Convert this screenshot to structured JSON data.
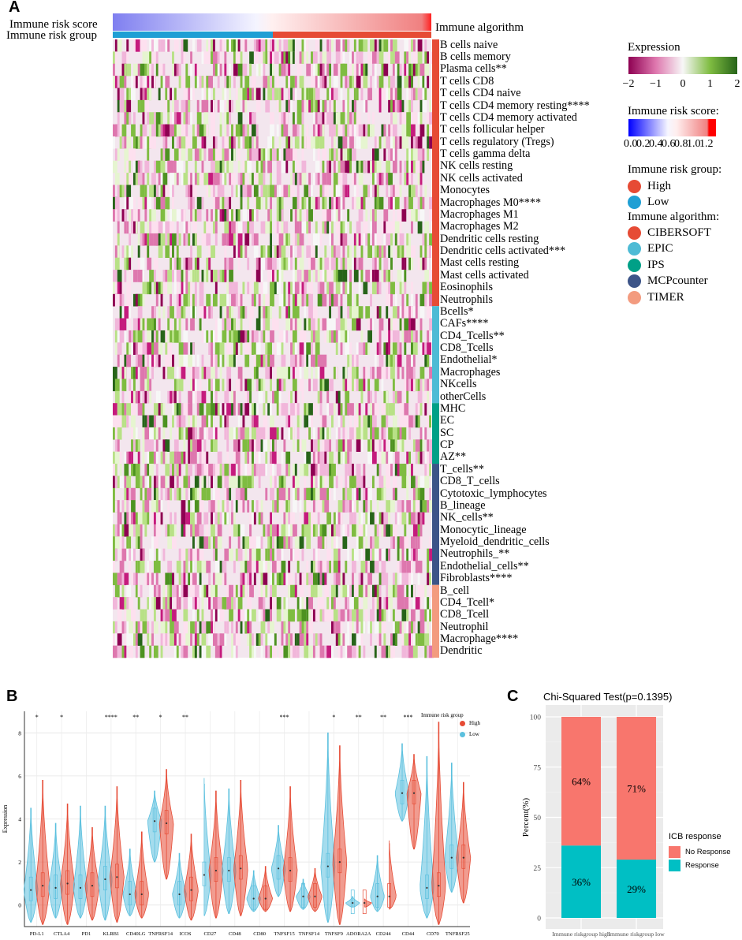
{
  "colors": {
    "high": "#e64b35",
    "low": "#1f9fd4",
    "CIBERSOFT": "#e64b35",
    "EPIC": "#4dbbd5",
    "IPS": "#00a087",
    "MCPcounter": "#3c5488",
    "TIMER": "#f39b7f",
    "no_response": "#f8766d",
    "response": "#00bfc4"
  },
  "panel_a": {
    "letter": "A",
    "score_label": "Immune risk score",
    "group_label": "Immune risk group",
    "algorithm_label": "Immune algorithm",
    "rows": [
      {
        "label": "B cells naive",
        "alg": "CIBERSOFT"
      },
      {
        "label": "B cells memory",
        "alg": "CIBERSOFT"
      },
      {
        "label": "Plasma cells**",
        "alg": "CIBERSOFT"
      },
      {
        "label": "T cells CD8",
        "alg": "CIBERSOFT"
      },
      {
        "label": "T cells CD4 naive",
        "alg": "CIBERSOFT"
      },
      {
        "label": "T cells CD4 memory resting****",
        "alg": "CIBERSOFT"
      },
      {
        "label": "T cells CD4 memory activated",
        "alg": "CIBERSOFT"
      },
      {
        "label": "T cells follicular helper",
        "alg": "CIBERSOFT"
      },
      {
        "label": "T cells regulatory (Tregs)",
        "alg": "CIBERSOFT"
      },
      {
        "label": "T cells gamma delta",
        "alg": "CIBERSOFT"
      },
      {
        "label": "NK cells resting",
        "alg": "CIBERSOFT"
      },
      {
        "label": "NK cells activated",
        "alg": "CIBERSOFT"
      },
      {
        "label": "Monocytes",
        "alg": "CIBERSOFT"
      },
      {
        "label": "Macrophages M0****",
        "alg": "CIBERSOFT"
      },
      {
        "label": "Macrophages M1",
        "alg": "CIBERSOFT"
      },
      {
        "label": "Macrophages M2",
        "alg": "CIBERSOFT"
      },
      {
        "label": "Dendritic cells resting",
        "alg": "CIBERSOFT"
      },
      {
        "label": "Dendritic cells activated***",
        "alg": "CIBERSOFT"
      },
      {
        "label": "Mast cells resting",
        "alg": "CIBERSOFT"
      },
      {
        "label": "Mast cells activated",
        "alg": "CIBERSOFT"
      },
      {
        "label": "Eosinophils",
        "alg": "CIBERSOFT"
      },
      {
        "label": "Neutrophils",
        "alg": "CIBERSOFT"
      },
      {
        "label": "Bcells*",
        "alg": "EPIC"
      },
      {
        "label": "CAFs****",
        "alg": "EPIC"
      },
      {
        "label": "CD4_Tcells**",
        "alg": "EPIC"
      },
      {
        "label": "CD8_Tcells",
        "alg": "EPIC"
      },
      {
        "label": "Endothelial*",
        "alg": "EPIC"
      },
      {
        "label": "Macrophages",
        "alg": "EPIC"
      },
      {
        "label": "NKcells",
        "alg": "EPIC"
      },
      {
        "label": "otherCells",
        "alg": "EPIC"
      },
      {
        "label": "MHC",
        "alg": "IPS"
      },
      {
        "label": "EC",
        "alg": "IPS"
      },
      {
        "label": "SC",
        "alg": "IPS"
      },
      {
        "label": "CP",
        "alg": "IPS"
      },
      {
        "label": "AZ**",
        "alg": "IPS"
      },
      {
        "label": "T_cells**",
        "alg": "MCPcounter"
      },
      {
        "label": "CD8_T_cells",
        "alg": "MCPcounter"
      },
      {
        "label": "Cytotoxic_lymphocytes",
        "alg": "MCPcounter"
      },
      {
        "label": "B_lineage",
        "alg": "MCPcounter"
      },
      {
        "label": "NK_cells**",
        "alg": "MCPcounter"
      },
      {
        "label": "Monocytic_lineage",
        "alg": "MCPcounter"
      },
      {
        "label": "Myeloid_dendritic_cells",
        "alg": "MCPcounter"
      },
      {
        "label": "Neutrophils_**",
        "alg": "MCPcounter"
      },
      {
        "label": "Endothelial_cells**",
        "alg": "MCPcounter"
      },
      {
        "label": "Fibroblasts****",
        "alg": "MCPcounter"
      },
      {
        "label": "B_cell",
        "alg": "TIMER"
      },
      {
        "label": "CD4_Tcell*",
        "alg": "TIMER"
      },
      {
        "label": "CD8_Tcell",
        "alg": "TIMER"
      },
      {
        "label": "Neutrophil",
        "alg": "TIMER"
      },
      {
        "label": "Macrophage****",
        "alg": "TIMER"
      },
      {
        "label": "Dendritic",
        "alg": "TIMER"
      }
    ],
    "legend": {
      "expression_title": "Expression",
      "expression_ticks": [
        "−2",
        "−1",
        "0",
        "1",
        "2"
      ],
      "score_title": "Immune risk score:",
      "score_ticks": [
        "0.0",
        "0.2",
        "0.4",
        "0.6",
        "0.8",
        "1.0",
        "1.2"
      ],
      "group_title": "Immune risk group:",
      "groups": [
        "High",
        "Low"
      ],
      "algorithm_title": "Immune algorithm:",
      "algorithms": [
        "CIBERSOFT",
        "EPIC",
        "IPS",
        "MCPcounter",
        "TIMER"
      ]
    }
  },
  "panel_b": {
    "letter": "B",
    "legend_title": "Immune risk group",
    "legend_items": [
      "High",
      "Low"
    ]
  },
  "panel_c": {
    "letter": "C"
  },
  "chart_data": [
    {
      "type": "violin",
      "title": "",
      "xlabel": "",
      "ylabel": "Expression",
      "ylim": [
        -1,
        9
      ],
      "yticks": [
        "0",
        "2",
        "4",
        "6",
        "8"
      ],
      "grid": true,
      "legend": "top-right",
      "categories": [
        "PD-L1",
        "CTLA4",
        "PD1",
        "KLRB1",
        "CD40LG",
        "TNFRSF14",
        "ICOS",
        "CD27",
        "CD48",
        "CD80",
        "TNFSF15",
        "TNFSF14",
        "TNFSF9",
        "ADORA2A",
        "CD244",
        "CD44",
        "CD70",
        "TNFRSF25"
      ],
      "significance": [
        "*",
        "*",
        "",
        "****",
        "**",
        "*",
        "**",
        "",
        "",
        "",
        "***",
        "",
        "*",
        "**",
        "**",
        "***",
        "",
        ""
      ],
      "series": [
        {
          "name": "High",
          "median": [
            0.9,
            1.0,
            0.9,
            1.3,
            0.5,
            3.8,
            0.7,
            1.6,
            1.7,
            0.3,
            1.6,
            0.4,
            2.0,
            0.1,
            0.4,
            5.2,
            0.9,
            2.2
          ],
          "max": [
            5.8,
            4.7,
            3.6,
            5.5,
            3.4,
            6.3,
            3.3,
            5.3,
            5.8,
            1.8,
            5.5,
            1.7,
            7.4,
            0.3,
            3.0,
            7.0,
            8.5,
            5.7
          ],
          "min": [
            -0.9,
            -0.9,
            -0.7,
            -0.8,
            -0.6,
            1.2,
            -0.7,
            -0.6,
            -0.5,
            -0.3,
            -0.3,
            -0.3,
            -0.9,
            -0.1,
            -0.2,
            2.6,
            -0.9,
            0.1
          ]
        },
        {
          "name": "Low",
          "median": [
            0.7,
            0.8,
            0.8,
            1.2,
            0.5,
            3.9,
            0.5,
            1.4,
            1.6,
            0.3,
            1.7,
            0.4,
            1.8,
            0.1,
            0.4,
            5.2,
            0.8,
            2.2
          ],
          "max": [
            4.5,
            3.8,
            4.6,
            4.6,
            2.6,
            5.3,
            2.4,
            5.9,
            5.4,
            1.6,
            3.7,
            1.2,
            8.0,
            0.4,
            2.3,
            7.5,
            6.9,
            6.6
          ],
          "min": [
            -0.8,
            -0.6,
            -0.6,
            -0.7,
            -0.5,
            2.0,
            -0.6,
            -0.5,
            -0.4,
            -0.3,
            0.4,
            -0.2,
            -0.8,
            -0.1,
            -0.3,
            3.9,
            -0.6,
            0.6
          ]
        }
      ]
    },
    {
      "type": "bar",
      "stacked": true,
      "title": "Chi-Squared Test(p=0.1395)",
      "xlabel": "",
      "ylabel": "Percent(%)",
      "ylim": [
        0,
        100
      ],
      "yticks": [
        "0",
        "25",
        "50",
        "75",
        "100"
      ],
      "categories": [
        "Immune riskgroup high",
        "Immune riskgroup low"
      ],
      "legend_title": "ICB response",
      "legend": "right",
      "series": [
        {
          "name": "Response",
          "values": [
            36,
            29
          ],
          "labels": [
            "36%",
            "29%"
          ]
        },
        {
          "name": "No Response",
          "values": [
            64,
            71
          ],
          "labels": [
            "64%",
            "71%"
          ]
        }
      ]
    }
  ]
}
